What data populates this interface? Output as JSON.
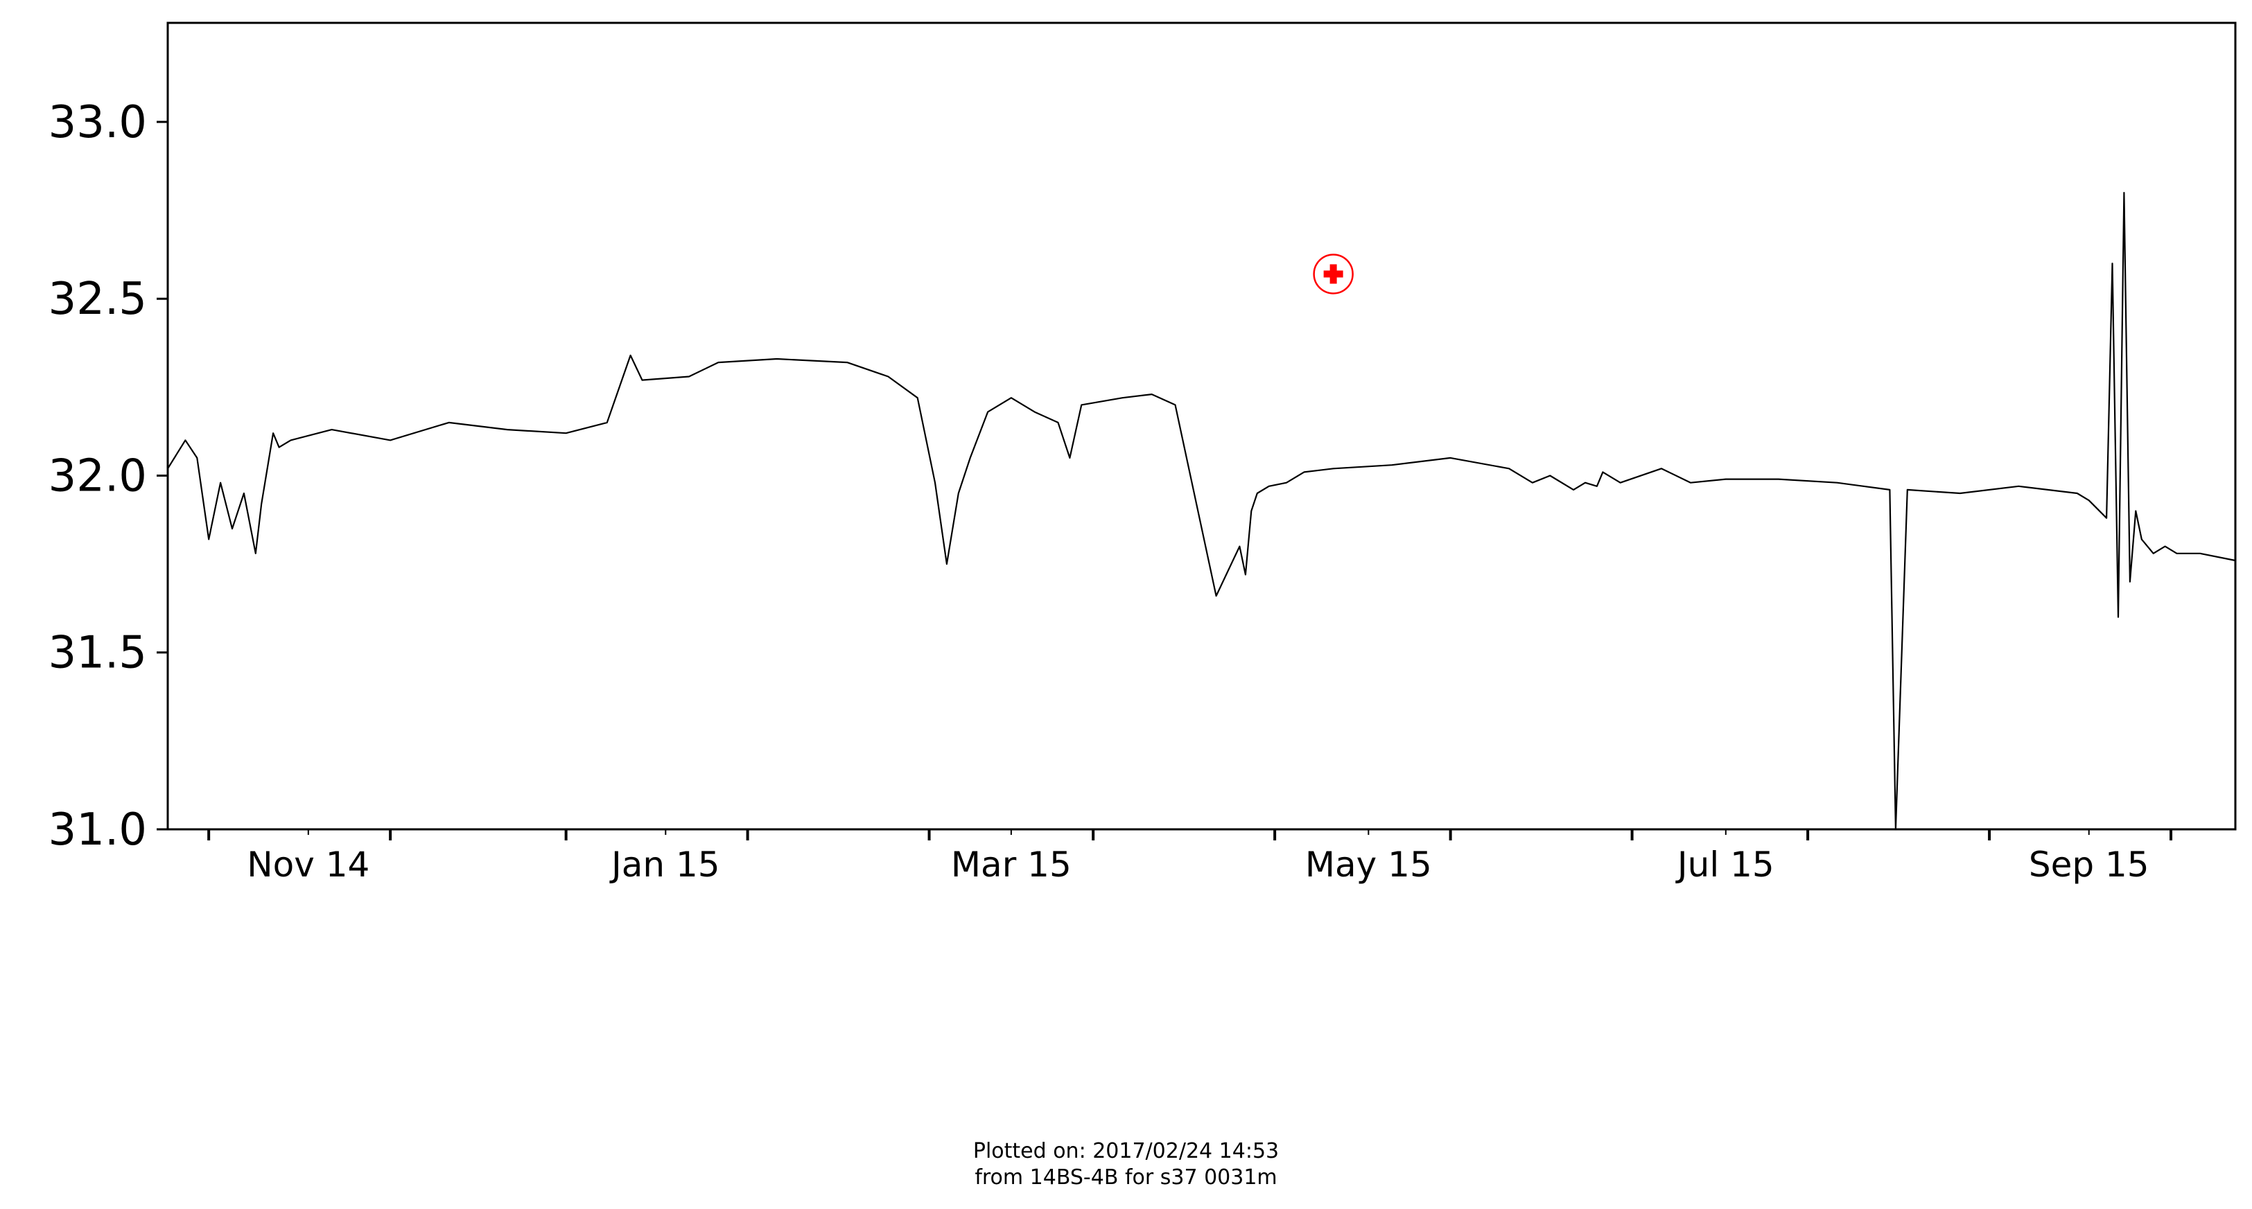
{
  "chart_data": {
    "type": "line",
    "title": "",
    "xlabel": "",
    "ylabel": "",
    "ylim": [
      31.0,
      33.28
    ],
    "xlim": [
      "2014-10-08",
      "2015-09-26"
    ],
    "yticks": [
      31.0,
      31.5,
      32.0,
      32.5,
      33.0
    ],
    "ytick_labels": [
      "31.0",
      "31.5",
      "32.0",
      "32.5",
      "33.0"
    ],
    "xticks": [
      "2014-11-01",
      "2015-01-01",
      "2015-03-01",
      "2015-05-01",
      "2015-07-01",
      "2015-09-01"
    ],
    "xtick_labels": [
      "Nov 14",
      "Jan 15",
      "Mar 15",
      "May 15",
      "Jul 15",
      "Sep 15"
    ],
    "grid": false,
    "line_color": "#000000",
    "series": [
      {
        "name": "",
        "x": [
          "2014-10-08",
          "2014-10-11",
          "2014-10-13",
          "2014-10-15",
          "2014-10-17",
          "2014-10-19",
          "2014-10-21",
          "2014-10-23",
          "2014-10-24",
          "2014-10-26",
          "2014-10-27",
          "2014-10-29",
          "2014-11-05",
          "2014-11-15",
          "2014-11-25",
          "2014-12-05",
          "2014-12-15",
          "2014-12-22",
          "2014-12-26",
          "2014-12-28",
          "2015-01-05",
          "2015-01-10",
          "2015-01-20",
          "2015-02-01",
          "2015-02-08",
          "2015-02-13",
          "2015-02-16",
          "2015-02-18",
          "2015-02-20",
          "2015-02-22",
          "2015-02-25",
          "2015-03-01",
          "2015-03-05",
          "2015-03-09",
          "2015-03-11",
          "2015-03-13",
          "2015-03-20",
          "2015-03-25",
          "2015-03-29",
          "2015-04-05",
          "2015-04-09",
          "2015-04-10",
          "2015-04-11",
          "2015-04-12",
          "2015-04-14",
          "2015-04-17",
          "2015-04-20",
          "2015-04-25",
          "2015-05-05",
          "2015-05-15",
          "2015-05-25",
          "2015-05-29",
          "2015-06-01",
          "2015-06-05",
          "2015-06-07",
          "2015-06-09",
          "2015-06-10",
          "2015-06-13",
          "2015-06-20",
          "2015-06-25",
          "2015-07-01",
          "2015-07-10",
          "2015-07-20",
          "2015-07-29",
          "2015-07-30",
          "2015-08-01",
          "2015-08-10",
          "2015-08-20",
          "2015-08-30",
          "2015-09-01",
          "2015-09-04",
          "2015-09-05",
          "2015-09-06",
          "2015-09-07",
          "2015-09-08",
          "2015-09-09",
          "2015-09-10",
          "2015-09-11",
          "2015-09-12",
          "2015-09-13",
          "2015-09-14",
          "2015-09-16",
          "2015-09-20",
          "2015-09-26"
        ],
        "y": [
          32.02,
          32.1,
          32.05,
          31.82,
          31.98,
          31.85,
          31.95,
          31.78,
          31.92,
          32.12,
          32.08,
          32.1,
          32.13,
          32.1,
          32.15,
          32.13,
          32.12,
          32.15,
          32.34,
          32.27,
          32.28,
          32.32,
          32.33,
          32.32,
          32.28,
          32.22,
          31.98,
          31.75,
          31.95,
          32.05,
          32.18,
          32.22,
          32.18,
          32.15,
          32.05,
          32.2,
          32.22,
          32.23,
          32.2,
          31.66,
          31.8,
          31.72,
          31.9,
          31.95,
          31.97,
          31.98,
          32.01,
          32.02,
          32.03,
          32.05,
          32.02,
          31.98,
          32.0,
          31.96,
          31.98,
          31.97,
          32.01,
          31.98,
          32.02,
          31.98,
          31.99,
          31.99,
          31.98,
          31.96,
          31.0,
          31.96,
          31.95,
          31.97,
          31.95,
          31.93,
          31.88,
          32.6,
          31.6,
          32.8,
          31.7,
          31.9,
          31.82,
          31.8,
          31.78,
          31.79,
          31.8,
          31.78,
          31.78,
          31.76
        ]
      }
    ],
    "annotations": [
      {
        "type": "marker",
        "shape": "red-cross-in-circle",
        "x": "2015-04-25",
        "y": 32.57,
        "color": "#ff0000"
      }
    ]
  },
  "footer": {
    "line1": "Plotted on: 2017/02/24 14:53",
    "line2": " from 14BS-4B for s37 0031m"
  }
}
